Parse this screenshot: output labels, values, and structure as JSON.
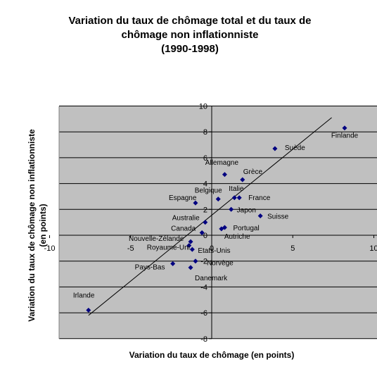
{
  "chart_data": {
    "type": "scatter",
    "title_lines": [
      "Variation du taux de chômage total et du taux de",
      "chômage non inflationniste",
      "(1990-1998)"
    ],
    "xlabel": "Variation du taux de chômage (en points)",
    "ylabel_lines": [
      "Variation du taux de chômage non inflationniste",
      "(en points)"
    ],
    "xlim": [
      -10,
      10
    ],
    "ylim": [
      -8,
      10
    ],
    "x_ticks": [
      "-10",
      "-5",
      "0",
      "5",
      "10"
    ],
    "y_ticks": [
      "10",
      "8",
      "6",
      "4",
      "2",
      "0",
      "-2",
      "-4",
      "-6",
      "-8"
    ],
    "grid": "horizontal",
    "plot_bg": "#c0c0c0",
    "marker_color": "#000080",
    "points": [
      {
        "label": "Finlande",
        "x": 8.2,
        "y": 8.3
      },
      {
        "label": "Suède",
        "x": 3.9,
        "y": 6.7
      },
      {
        "label": "Allemagne",
        "x": 0.8,
        "y": 4.7
      },
      {
        "label": "Grèce",
        "x": 1.9,
        "y": 4.3
      },
      {
        "label": "Belgique",
        "x": 0.4,
        "y": 2.8
      },
      {
        "label": "Italie",
        "x": 1.4,
        "y": 2.9
      },
      {
        "label": "France",
        "x": 1.7,
        "y": 2.9
      },
      {
        "label": "Espagne",
        "x": -1.0,
        "y": 2.5
      },
      {
        "label": "Japon",
        "x": 1.2,
        "y": 2.0
      },
      {
        "label": "Suisse",
        "x": 3.0,
        "y": 1.5
      },
      {
        "label": "Australie",
        "x": -0.4,
        "y": 1.0
      },
      {
        "label": "Portugal",
        "x": 0.8,
        "y": 0.6
      },
      {
        "label": "Autriche",
        "x": 0.6,
        "y": 0.5
      },
      {
        "label": "Canada",
        "x": -0.6,
        "y": 0.2
      },
      {
        "label": "Nouvelle-Zélande",
        "x": -1.3,
        "y": -0.5
      },
      {
        "label": "Royaume-Uni",
        "x": -1.4,
        "y": -0.8
      },
      {
        "label": "Etats-Unis",
        "x": -1.2,
        "y": -1.1
      },
      {
        "label": "Norvège",
        "x": -1.0,
        "y": -2.0
      },
      {
        "label": "Pays-Bas",
        "x": -2.4,
        "y": -2.2
      },
      {
        "label": "Danemark",
        "x": -1.3,
        "y": -2.5
      },
      {
        "label": "Irlande",
        "x": -7.6,
        "y": -5.8
      }
    ],
    "trend_line": {
      "x": [
        -7.6,
        7.4
      ],
      "y": [
        -6.2,
        9.1
      ]
    }
  }
}
